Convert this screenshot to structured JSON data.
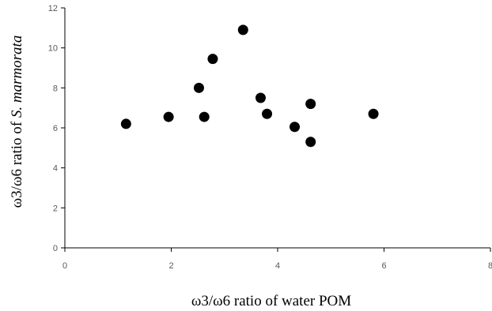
{
  "chart_data": {
    "type": "scatter",
    "title": "",
    "xlabel": "ω3/ω6 ratio of water POM",
    "ylabel_prefix": "ω3/ω6 ratio of ",
    "ylabel_italic": "S. marmorata",
    "xlim": [
      0,
      8
    ],
    "ylim": [
      0,
      12
    ],
    "x_ticks": [
      0,
      2,
      4,
      6,
      8
    ],
    "y_ticks": [
      0,
      2,
      4,
      6,
      8,
      10,
      12
    ],
    "x_tick_labels": [
      "0",
      "2",
      "4",
      "6",
      "8"
    ],
    "y_tick_labels": [
      "0",
      "2",
      "4",
      "6",
      "8",
      "10",
      "12"
    ],
    "grid": false,
    "legend": "none",
    "marker_color": "#000000",
    "points": [
      {
        "x": 1.15,
        "y": 6.2
      },
      {
        "x": 1.95,
        "y": 6.55
      },
      {
        "x": 2.52,
        "y": 8.0
      },
      {
        "x": 2.62,
        "y": 6.55
      },
      {
        "x": 2.78,
        "y": 9.45
      },
      {
        "x": 3.35,
        "y": 10.9
      },
      {
        "x": 3.68,
        "y": 7.5
      },
      {
        "x": 3.8,
        "y": 6.7
      },
      {
        "x": 4.32,
        "y": 6.05
      },
      {
        "x": 4.62,
        "y": 7.2
      },
      {
        "x": 4.62,
        "y": 5.3
      },
      {
        "x": 5.8,
        "y": 6.7
      }
    ]
  }
}
